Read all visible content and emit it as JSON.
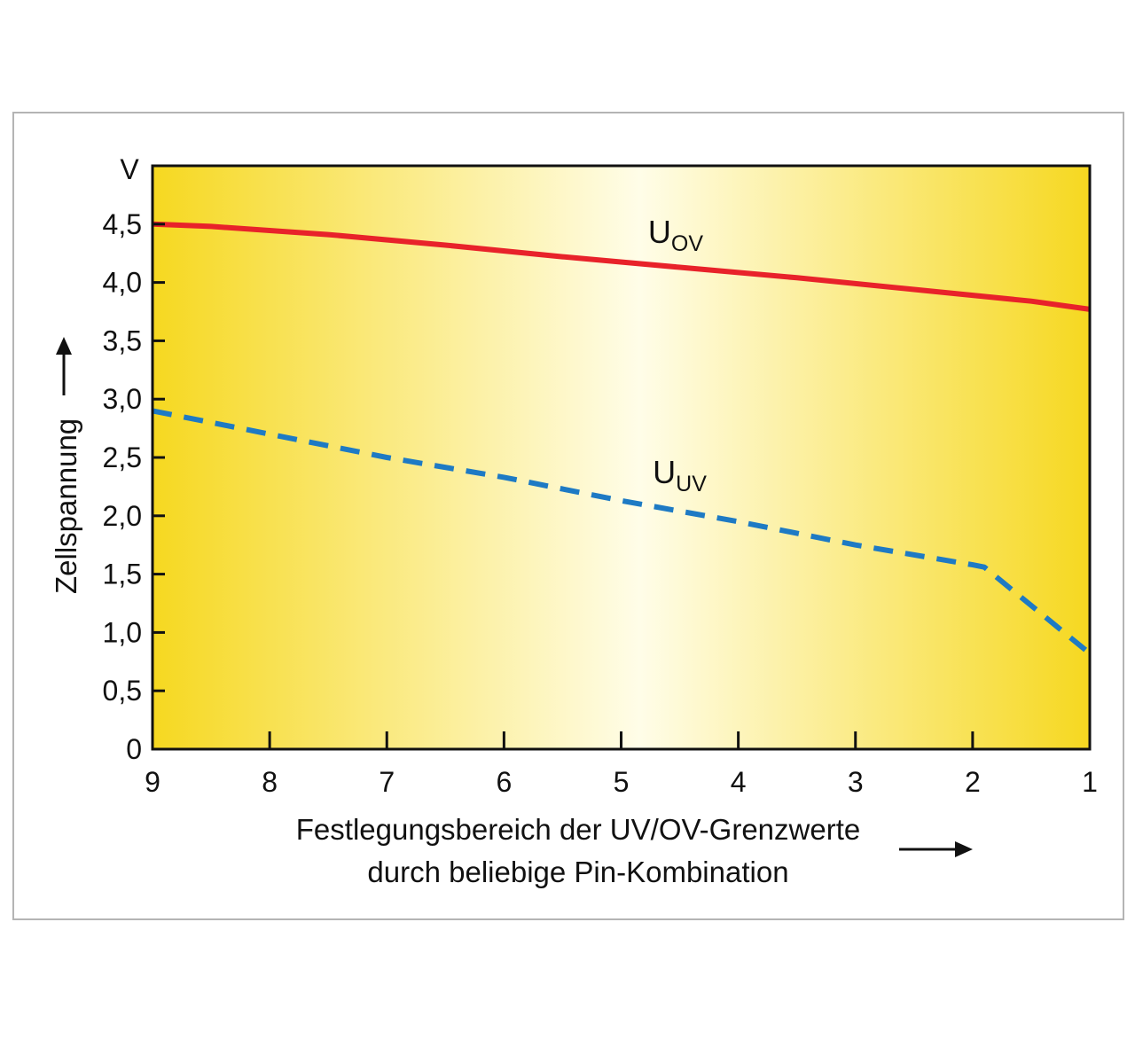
{
  "chart_data": {
    "type": "line",
    "x_categories": [
      "9",
      "8",
      "7",
      "6",
      "5",
      "4",
      "3",
      "2",
      "1"
    ],
    "xlabel_lines": [
      "Festlegungsbereich der UV/OV-Grenzwerte",
      "durch beliebige Pin-Kombination"
    ],
    "ylabel": "Zellspannung",
    "yunit": "V",
    "ylim": [
      0,
      5.0
    ],
    "yticks": [
      "0",
      "0,5",
      "1,0",
      "1,5",
      "2,0",
      "2,5",
      "3,0",
      "3,5",
      "4,0",
      "4,5"
    ],
    "grid": false,
    "background_gradient": [
      "#f6d820",
      "#fffde8",
      "#f6d820"
    ],
    "series": [
      {
        "name_main": "U",
        "name_sub": "OV",
        "color": "#e8222a",
        "style": "solid",
        "x": [
          9,
          8.5,
          7.5,
          6.5,
          5.5,
          4.5,
          3.5,
          2.5,
          1.5,
          1
        ],
        "values": [
          4.5,
          4.48,
          4.41,
          4.32,
          4.22,
          4.13,
          4.04,
          3.94,
          3.84,
          3.77
        ]
      },
      {
        "name_main": "U",
        "name_sub": "UV",
        "color": "#1e7ac4",
        "style": "dashed",
        "x": [
          9,
          8,
          7,
          6,
          5,
          4,
          3,
          2,
          1.9,
          1
        ],
        "values": [
          2.9,
          2.7,
          2.5,
          2.33,
          2.13,
          1.95,
          1.75,
          1.58,
          1.56,
          0.82
        ]
      }
    ]
  }
}
